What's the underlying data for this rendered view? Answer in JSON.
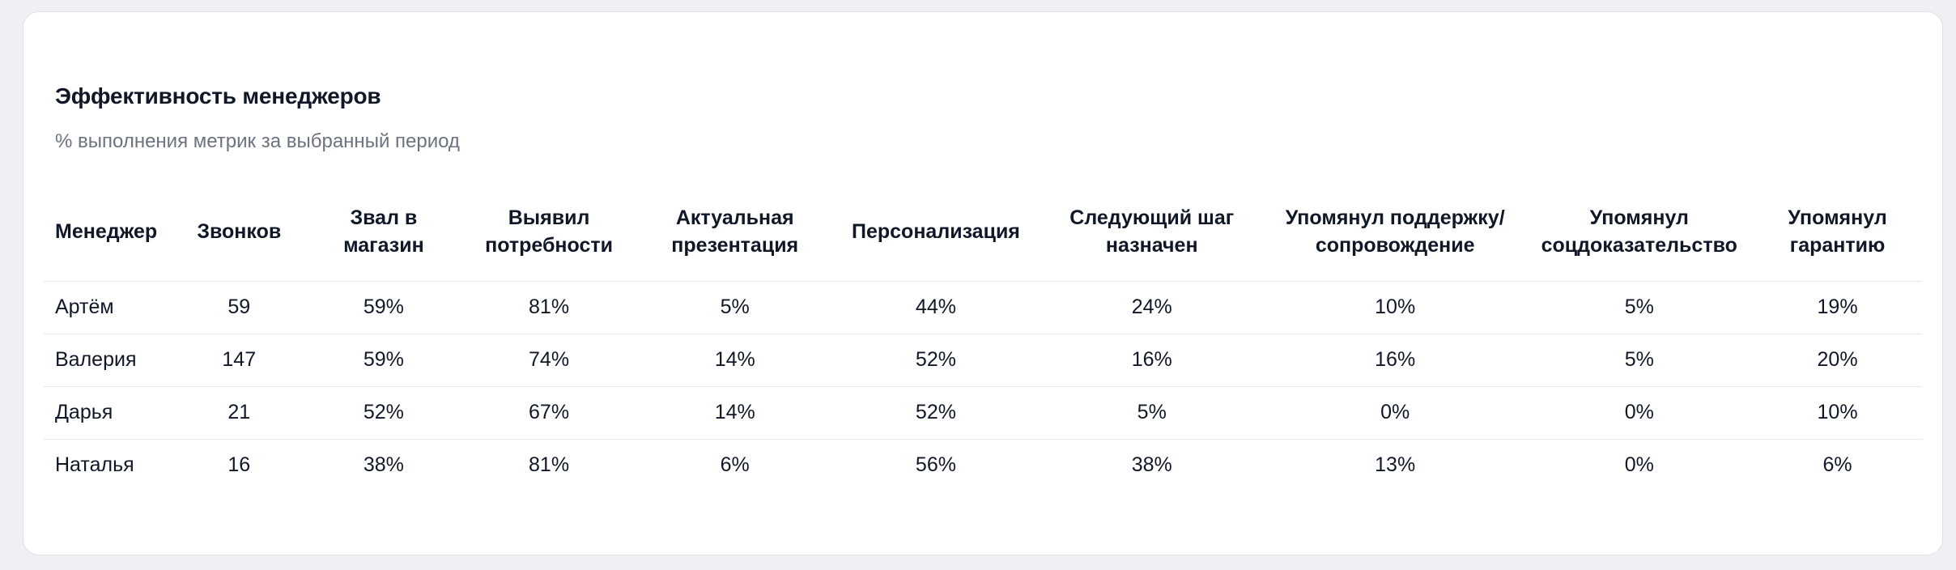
{
  "card": {
    "title": "Эффективность менеджеров",
    "subtitle": "% выполнения метрик за выбранный период"
  },
  "chart_data": {
    "type": "table",
    "title": "Эффективность менеджеров",
    "subtitle": "% выполнения метрик за выбранный период",
    "columns": [
      "Менеджер",
      "Звонков",
      "Звал в магазин",
      "Выявил потребности",
      "Актуальная презентация",
      "Персонализация",
      "Следующий шаг назначен",
      "Упомянул поддержку/ сопровождение",
      "Упомянул соцдоказательство",
      "Упомянул гарантию"
    ],
    "rows": [
      [
        "Артём",
        "59",
        "59%",
        "81%",
        "5%",
        "44%",
        "24%",
        "10%",
        "5%",
        "19%"
      ],
      [
        "Валерия",
        "147",
        "59%",
        "74%",
        "14%",
        "52%",
        "16%",
        "16%",
        "5%",
        "20%"
      ],
      [
        "Дарья",
        "21",
        "52%",
        "67%",
        "14%",
        "52%",
        "5%",
        "0%",
        "0%",
        "10%"
      ],
      [
        "Наталья",
        "16",
        "38%",
        "81%",
        "6%",
        "56%",
        "38%",
        "13%",
        "0%",
        "6%"
      ]
    ]
  },
  "colors": {
    "page_bg": "#eef0f3",
    "card_bg": "#ffffff",
    "card_border": "#dee1e6",
    "title": "#101828",
    "subtitle": "#6b7280",
    "cell_text": "#101828",
    "row_divider": "#e5e7eb"
  }
}
